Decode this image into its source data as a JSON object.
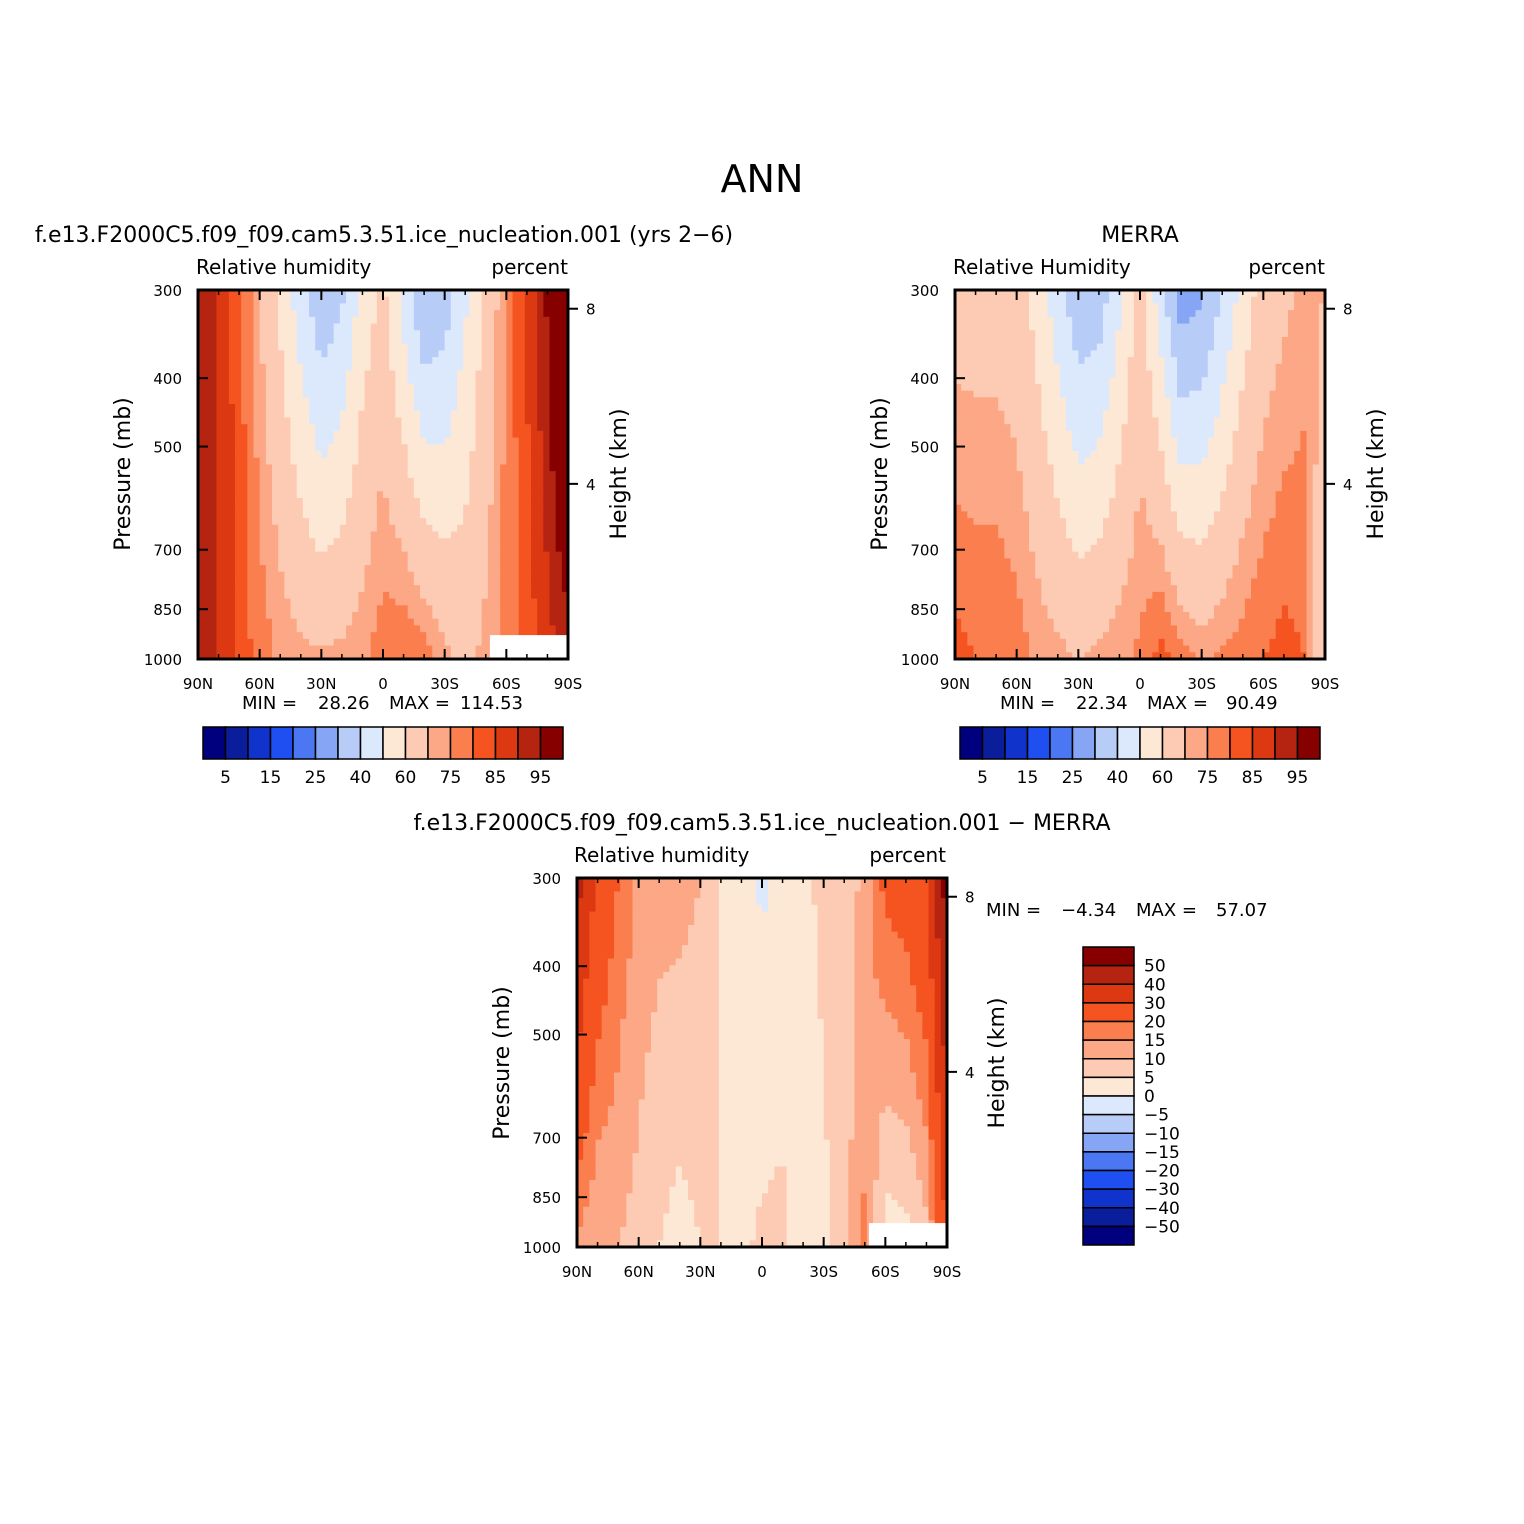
{
  "figure": {
    "main_title": "ANN"
  },
  "palette_abs": [
    "#00007f",
    "#0a1e9c",
    "#1033cc",
    "#1f4ff0",
    "#4b78f2",
    "#86a6f5",
    "#b8ccf8",
    "#dce9fd",
    "#fde8d6",
    "#fdcbb3",
    "#fca785",
    "#fb7e4f",
    "#f55420",
    "#dc3812",
    "#b52411",
    "#870000"
  ],
  "palette_diff": [
    "#00007f",
    "#0a1e9c",
    "#1033cc",
    "#1f4ff0",
    "#4b78f2",
    "#86a6f5",
    "#b8ccf8",
    "#dce9fd",
    "#fde8d6",
    "#fdcbb3",
    "#fca785",
    "#fb7e4f",
    "#f55420",
    "#dc3812",
    "#b52411",
    "#870000"
  ],
  "chart_data": [
    {
      "id": "model",
      "type": "heatmap",
      "title": "f.e13.F2000C5.f09_f09.cam5.3.51.ice_nucleation.001 (yrs 2−6)",
      "left_label": "Relative humidity",
      "right_label": "percent",
      "ylabel": "Pressure (mb)",
      "ylabel2": "Height (km)",
      "x_ticks": [
        "90N",
        "60N",
        "30N",
        "0",
        "30S",
        "60S",
        "90S"
      ],
      "x_range": [
        90,
        -90
      ],
      "y_ticks": [
        "300",
        "400",
        "500",
        "700",
        "850",
        "1000"
      ],
      "y_range": [
        1000,
        300
      ],
      "y_log": true,
      "y2_ticks": [
        "8",
        "4"
      ],
      "min_label": "MIN =",
      "min_value": "28.26",
      "max_label": "MAX =",
      "max_value": "114.53",
      "colorbar_labels": [
        "5",
        "15",
        "25",
        "40",
        "60",
        "75",
        "85",
        "95"
      ],
      "levels": [
        5,
        10,
        15,
        20,
        25,
        30,
        40,
        50,
        60,
        70,
        75,
        80,
        85,
        90,
        95
      ],
      "masked_region": {
        "lat": [
          -52,
          -90
        ],
        "p": [
          1000,
          925
        ]
      },
      "field": {
        "base": [
          [
            -90,
            92
          ],
          [
            -80,
            88
          ],
          [
            -70,
            82
          ],
          [
            -60,
            77
          ],
          [
            -50,
            72
          ],
          [
            -40,
            68
          ],
          [
            -30,
            72
          ],
          [
            -20,
            78
          ],
          [
            -10,
            80
          ],
          [
            0,
            78
          ],
          [
            10,
            74
          ],
          [
            20,
            72
          ],
          [
            30,
            71
          ],
          [
            40,
            72
          ],
          [
            50,
            74
          ],
          [
            60,
            78
          ],
          [
            70,
            83
          ],
          [
            80,
            90
          ],
          [
            90,
            95
          ]
        ],
        "upper": [
          [
            -90,
            115
          ],
          [
            -80,
            96
          ],
          [
            -70,
            86
          ],
          [
            -60,
            76
          ],
          [
            -50,
            62
          ],
          [
            -40,
            48
          ],
          [
            -30,
            34
          ],
          [
            -20,
            30
          ],
          [
            -10,
            46
          ],
          [
            0,
            62
          ],
          [
            10,
            54
          ],
          [
            20,
            38
          ],
          [
            30,
            32
          ],
          [
            40,
            44
          ],
          [
            50,
            58
          ],
          [
            60,
            70
          ],
          [
            70,
            82
          ],
          [
            80,
            90
          ],
          [
            90,
            94
          ]
        ]
      }
    },
    {
      "id": "obs",
      "type": "heatmap",
      "title": "MERRA",
      "left_label": "Relative Humidity",
      "right_label": "percent",
      "ylabel": "Pressure (mb)",
      "ylabel2": "Height (km)",
      "x_ticks": [
        "90N",
        "60N",
        "30N",
        "0",
        "30S",
        "60S",
        "90S"
      ],
      "x_range": [
        90,
        -90
      ],
      "y_ticks": [
        "300",
        "400",
        "500",
        "700",
        "850",
        "1000"
      ],
      "y_range": [
        1000,
        300
      ],
      "y_log": true,
      "y2_ticks": [
        "8",
        "4"
      ],
      "min_label": "MIN =",
      "min_value": "22.34",
      "max_label": "MAX =",
      "max_value": "90.49",
      "colorbar_labels": [
        "5",
        "15",
        "25",
        "40",
        "60",
        "75",
        "85",
        "95"
      ],
      "levels": [
        5,
        10,
        15,
        20,
        25,
        30,
        40,
        50,
        60,
        70,
        75,
        80,
        85,
        90,
        95
      ],
      "field": {
        "base": [
          [
            -90,
            60
          ],
          [
            -80,
            80
          ],
          [
            -70,
            82
          ],
          [
            -60,
            80
          ],
          [
            -50,
            78
          ],
          [
            -40,
            76
          ],
          [
            -30,
            74
          ],
          [
            -20,
            78
          ],
          [
            -10,
            82
          ],
          [
            0,
            76
          ],
          [
            10,
            74
          ],
          [
            20,
            72
          ],
          [
            30,
            70
          ],
          [
            40,
            72
          ],
          [
            50,
            74
          ],
          [
            60,
            78
          ],
          [
            70,
            80
          ],
          [
            80,
            80
          ],
          [
            90,
            82
          ]
        ],
        "upper": [
          [
            -90,
            70
          ],
          [
            -80,
            72
          ],
          [
            -70,
            68
          ],
          [
            -60,
            64
          ],
          [
            -50,
            54
          ],
          [
            -40,
            40
          ],
          [
            -30,
            28
          ],
          [
            -20,
            24
          ],
          [
            -10,
            44
          ],
          [
            0,
            64
          ],
          [
            10,
            48
          ],
          [
            20,
            34
          ],
          [
            30,
            32
          ],
          [
            40,
            44
          ],
          [
            50,
            56
          ],
          [
            60,
            64
          ],
          [
            70,
            66
          ],
          [
            80,
            66
          ],
          [
            90,
            66
          ]
        ]
      }
    },
    {
      "id": "diff",
      "type": "heatmap",
      "title": "f.e13.F2000C5.f09_f09.cam5.3.51.ice_nucleation.001 − MERRA",
      "left_label": "Relative humidity",
      "right_label": "percent",
      "ylabel": "Pressure (mb)",
      "ylabel2": "Height (km)",
      "x_ticks": [
        "90N",
        "60N",
        "30N",
        "0",
        "30S",
        "60S",
        "90S"
      ],
      "x_range": [
        90,
        -90
      ],
      "y_ticks": [
        "300",
        "400",
        "500",
        "700",
        "850",
        "1000"
      ],
      "y_range": [
        1000,
        300
      ],
      "y_log": true,
      "y2_ticks": [
        "8",
        "4"
      ],
      "min_label": "MIN =",
      "min_value": "−4.34",
      "max_label": "MAX =",
      "max_value": "57.07",
      "colorbar_labels": [
        "50",
        "40",
        "30",
        "20",
        "15",
        "10",
        "5",
        "0",
        "−5",
        "−10",
        "−15",
        "−20",
        "−30",
        "−40",
        "−50"
      ],
      "levels": [
        -50,
        -40,
        -30,
        -20,
        -15,
        -10,
        -5,
        0,
        5,
        10,
        15,
        20,
        30,
        40,
        50
      ],
      "masked_region": {
        "lat": [
          -52,
          -90
        ],
        "p": [
          1000,
          925
        ]
      },
      "field": {
        "base": [
          [
            -90,
            30
          ],
          [
            -80,
            8
          ],
          [
            -70,
            3
          ],
          [
            -60,
            2
          ],
          [
            -50,
            16
          ],
          [
            -40,
            8
          ],
          [
            -30,
            4
          ],
          [
            -20,
            3
          ],
          [
            -10,
            6
          ],
          [
            0,
            6
          ],
          [
            10,
            4
          ],
          [
            20,
            5
          ],
          [
            30,
            5
          ],
          [
            40,
            3
          ],
          [
            50,
            5
          ],
          [
            60,
            8
          ],
          [
            70,
            10
          ],
          [
            80,
            10
          ],
          [
            90,
            14
          ]
        ],
        "upper": [
          [
            -90,
            55
          ],
          [
            -80,
            30
          ],
          [
            -70,
            24
          ],
          [
            -60,
            22
          ],
          [
            -50,
            12
          ],
          [
            -40,
            6
          ],
          [
            -30,
            6
          ],
          [
            -20,
            4
          ],
          [
            -10,
            2
          ],
          [
            0,
            -1
          ],
          [
            10,
            3
          ],
          [
            20,
            5
          ],
          [
            30,
            10
          ],
          [
            40,
            12
          ],
          [
            50,
            12
          ],
          [
            60,
            14
          ],
          [
            70,
            20
          ],
          [
            80,
            28
          ],
          [
            90,
            44
          ]
        ]
      }
    }
  ]
}
